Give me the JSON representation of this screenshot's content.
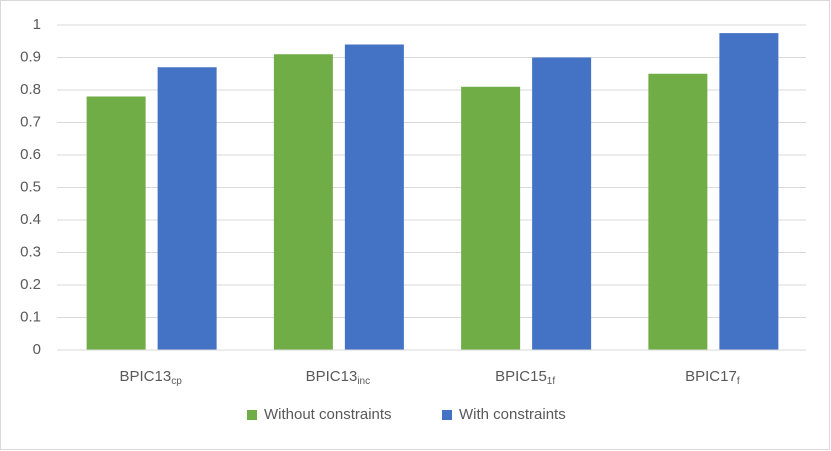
{
  "chart_data": {
    "type": "bar",
    "categories": [
      {
        "label": "BPIC13",
        "subscript": "cp"
      },
      {
        "label": "BPIC13",
        "subscript": "inc"
      },
      {
        "label": "BPIC15",
        "subscript": "1f"
      },
      {
        "label": "BPIC17",
        "subscript": "f"
      }
    ],
    "series": [
      {
        "name": "Without constraints",
        "color": "#70ad47",
        "values": [
          0.78,
          0.91,
          0.81,
          0.85
        ]
      },
      {
        "name": "With constraints",
        "color": "#4472c4",
        "values": [
          0.87,
          0.94,
          0.9,
          0.975
        ]
      }
    ],
    "ylim": [
      0,
      1
    ],
    "yticks": [
      0,
      0.1,
      0.2,
      0.3,
      0.4,
      0.5,
      0.6,
      0.7,
      0.8,
      0.9,
      1
    ],
    "grid": true,
    "legend": "bottom"
  }
}
